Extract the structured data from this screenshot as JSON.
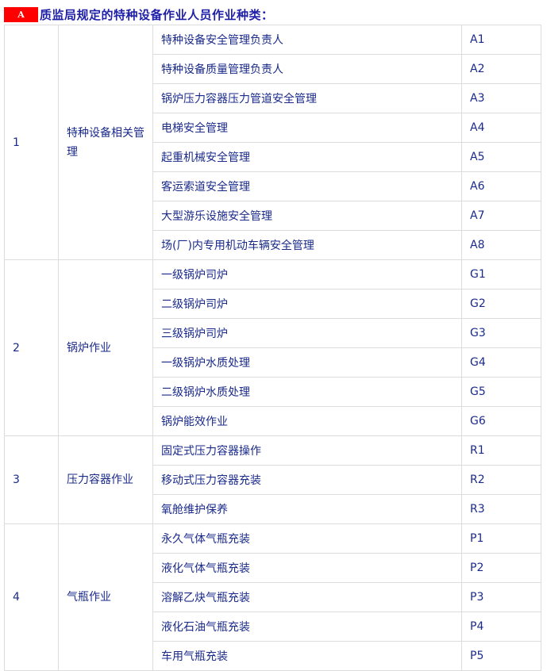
{
  "header": {
    "badge": "A",
    "title": "质监局规定的特种设备作业人员作业种类："
  },
  "groups": [
    {
      "no": "1",
      "name": "特种设备相关管理",
      "items": [
        [
          "特种设备安全管理负责人",
          "A1"
        ],
        [
          "特种设备质量管理负责人",
          "A2"
        ],
        [
          "锅炉压力容器压力管道安全管理",
          "A3"
        ],
        [
          "电梯安全管理",
          "A4"
        ],
        [
          "起重机械安全管理",
          "A5"
        ],
        [
          "客运索道安全管理",
          "A6"
        ],
        [
          "大型游乐设施安全管理",
          "A7"
        ],
        [
          "场(厂)内专用机动车辆安全管理",
          "A8"
        ]
      ]
    },
    {
      "no": "2",
      "name": "锅炉作业",
      "items": [
        [
          "一级锅炉司炉",
          "G1"
        ],
        [
          "二级锅炉司炉",
          "G2"
        ],
        [
          "三级锅炉司炉",
          "G3"
        ],
        [
          "一级锅炉水质处理",
          "G4"
        ],
        [
          "二级锅炉水质处理",
          "G5"
        ],
        [
          "锅炉能效作业",
          "G6"
        ]
      ]
    },
    {
      "no": "3",
      "name": "压力容器作业",
      "items": [
        [
          "固定式压力容器操作",
          "R1"
        ],
        [
          "移动式压力容器充装",
          "R2"
        ],
        [
          "氧舱维护保养",
          "R3"
        ]
      ]
    },
    {
      "no": "4",
      "name": "气瓶作业",
      "items": [
        [
          "永久气体气瓶充装",
          "P1"
        ],
        [
          "液化气体气瓶充装",
          "P2"
        ],
        [
          "溶解乙炔气瓶充装",
          "P3"
        ],
        [
          "液化石油气瓶充装",
          "P4"
        ],
        [
          "车用气瓶充装",
          "P5"
        ]
      ]
    }
  ],
  "colors": {
    "badge": "#ff0000",
    "title": "#1f1fa8",
    "text": "#1a2a8a"
  }
}
